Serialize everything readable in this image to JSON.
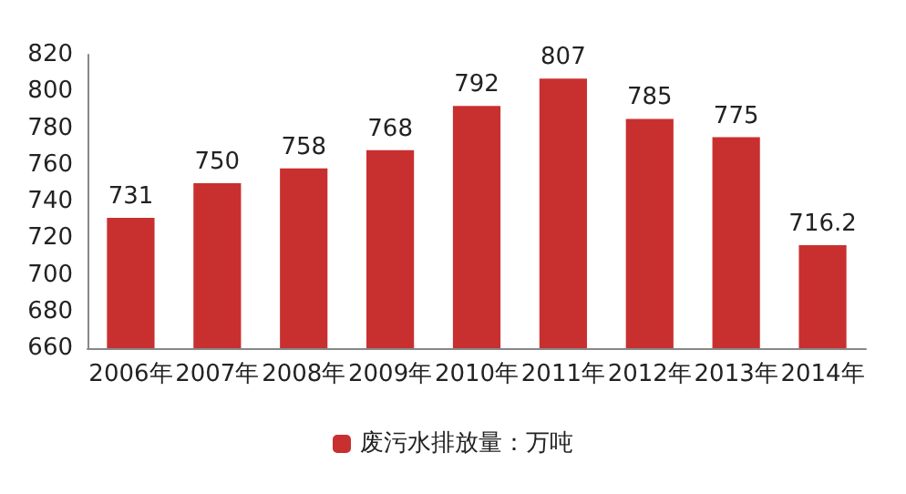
{
  "chart_data": {
    "type": "bar",
    "categories": [
      "2006年",
      "2007年",
      "2008年",
      "2009年",
      "2010年",
      "2011年",
      "2012年",
      "2013年",
      "2014年"
    ],
    "series": [
      {
        "name": "废污水排放量：万吨",
        "color": "#c8302f",
        "values": [
          731,
          750,
          758,
          768,
          792,
          807,
          785,
          775,
          716.2
        ]
      }
    ],
    "ylim": [
      660,
      820
    ],
    "yticks": [
      660,
      680,
      700,
      720,
      740,
      760,
      780,
      800,
      820
    ],
    "grid": false,
    "legend": "bottom",
    "data_labels": true
  }
}
